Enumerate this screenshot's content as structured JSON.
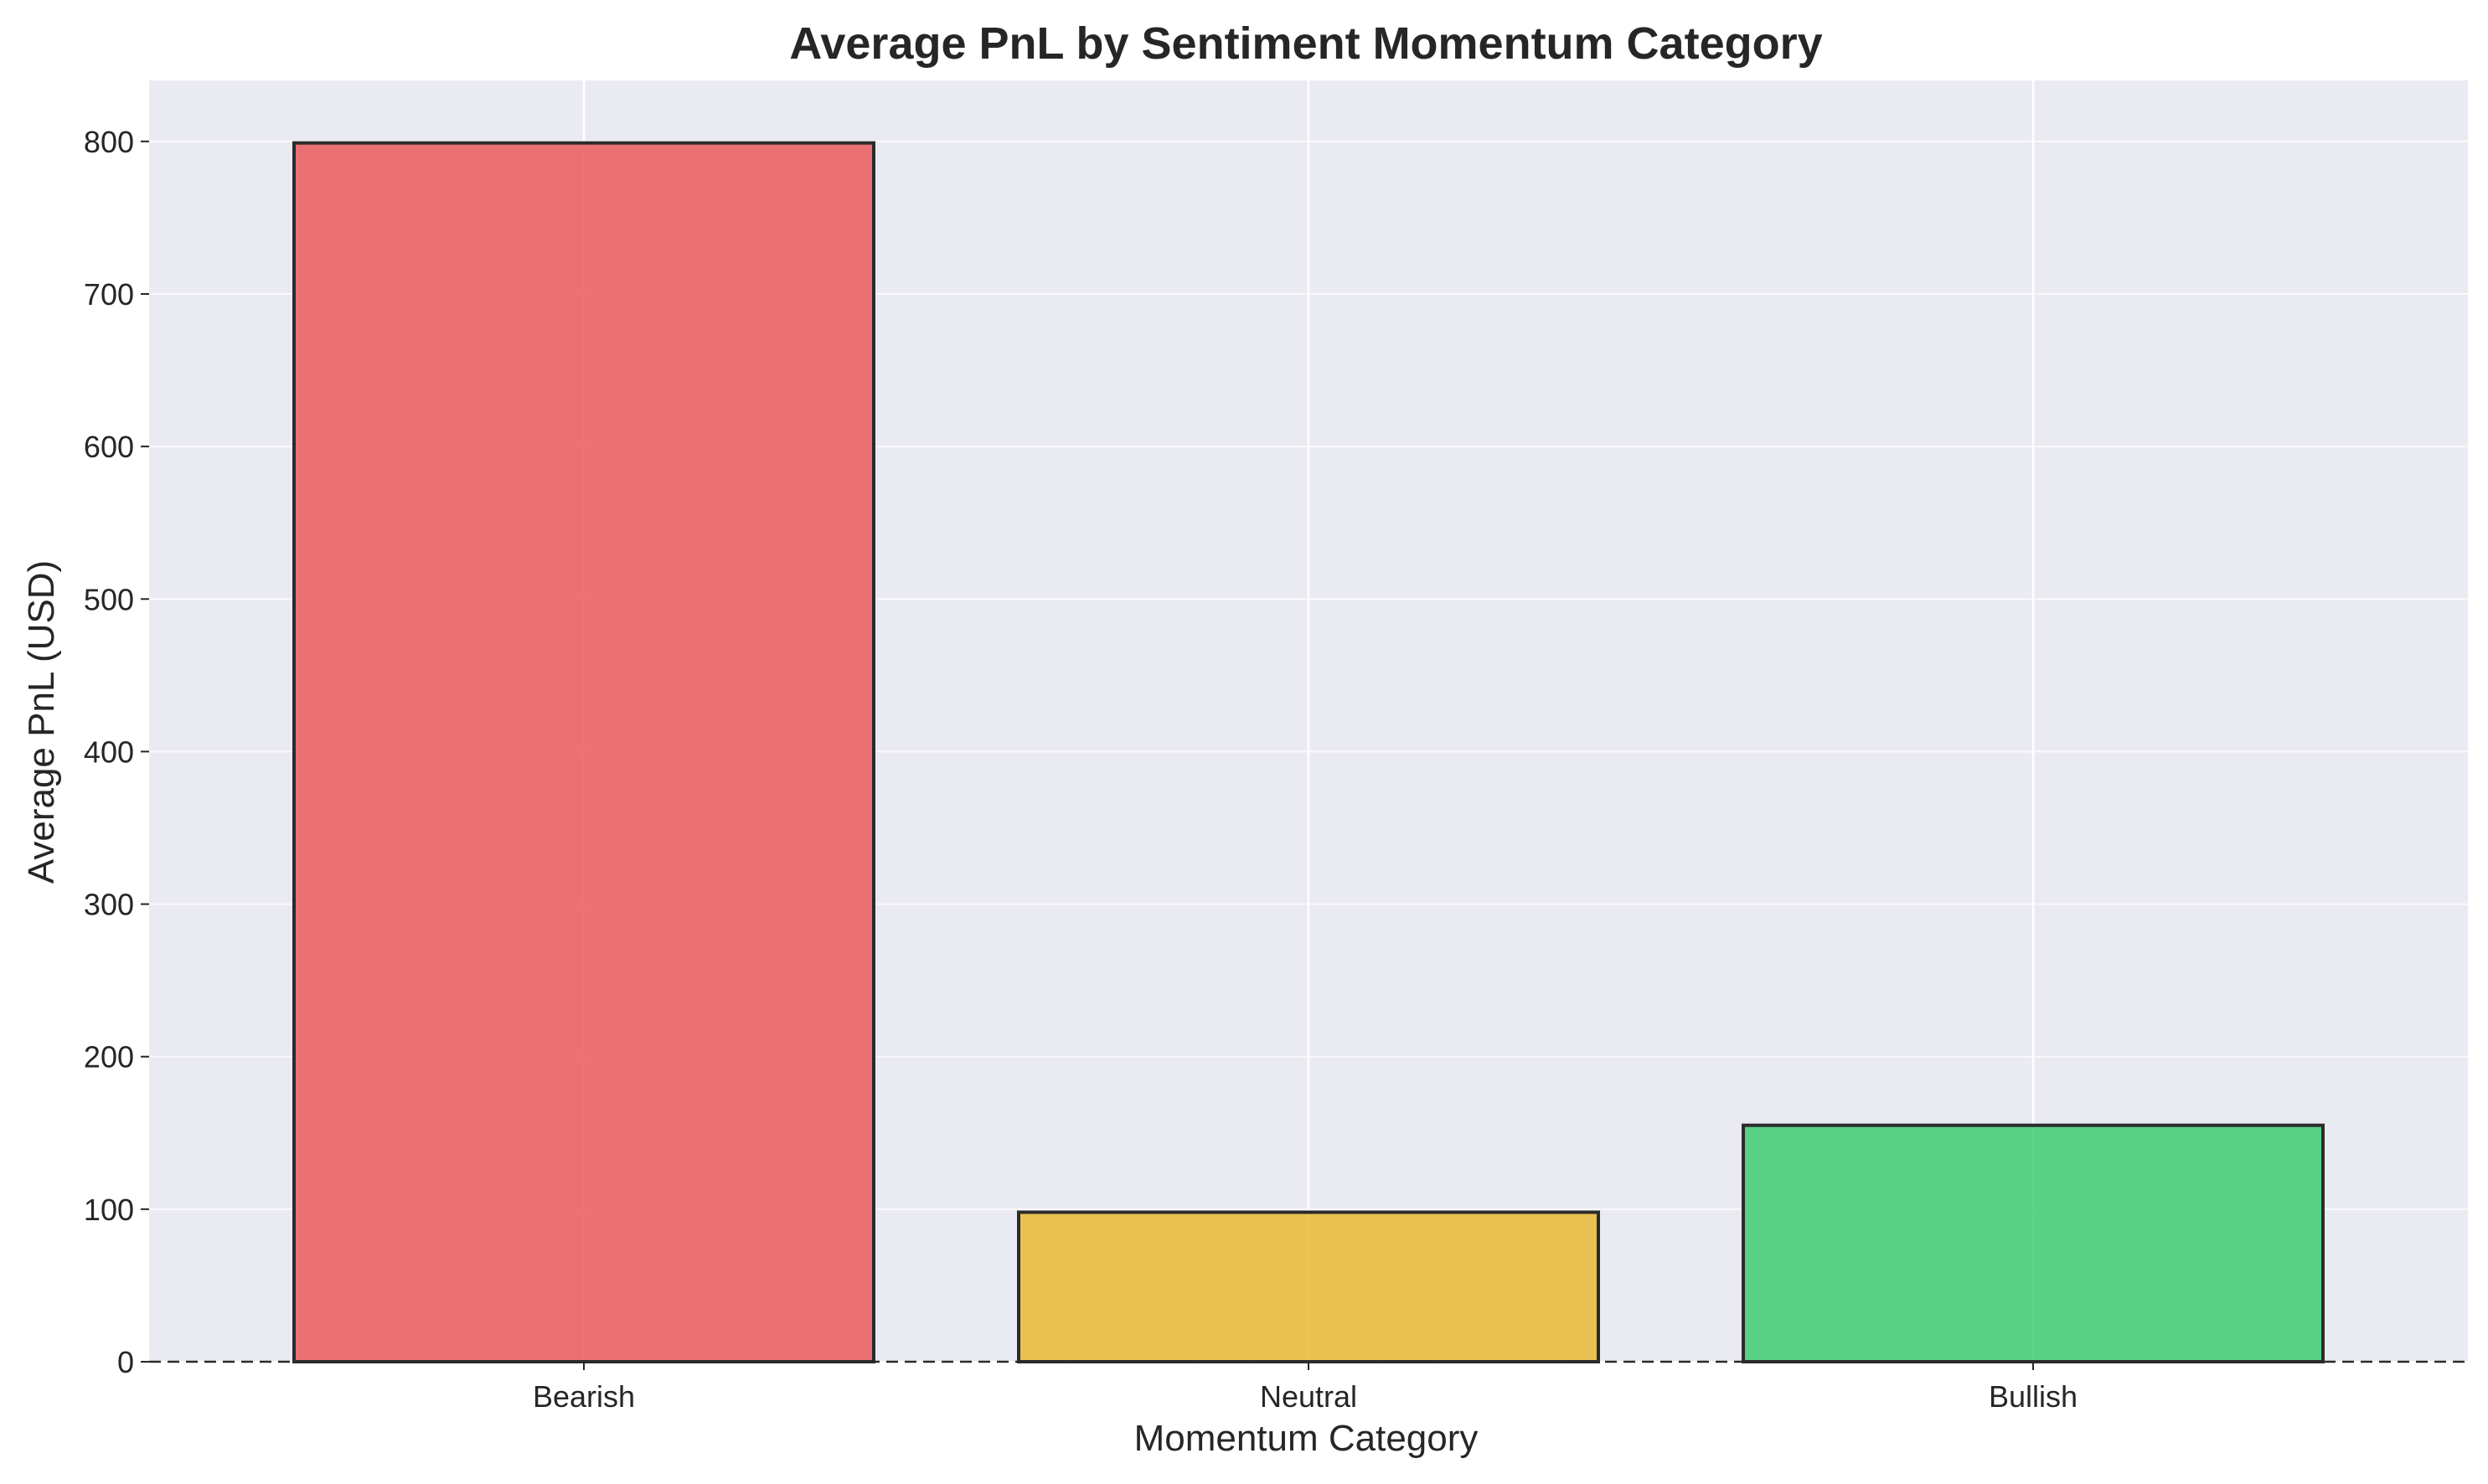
{
  "chart_data": {
    "type": "bar",
    "title": "Average PnL by Sentiment Momentum Category",
    "xlabel": "Momentum Category",
    "ylabel": "Average PnL (USD)",
    "categories": [
      "Bearish",
      "Neutral",
      "Bullish"
    ],
    "values": [
      799,
      98,
      155
    ],
    "colors": [
      "#eb5a5e",
      "#e8ba35",
      "#3ecc72"
    ],
    "edge_color": "#2b2b2b",
    "background_color": "#eaeaf2",
    "grid_color": "#ffffff",
    "ylim": [
      0,
      840
    ],
    "yticks": [
      0,
      100,
      200,
      300,
      400,
      500,
      600,
      700,
      800
    ],
    "ytick_labels": [
      "0",
      "100",
      "200",
      "300",
      "400",
      "500",
      "600",
      "700",
      "800"
    ],
    "grid": true,
    "zero_line": "dashed",
    "legend": "none"
  }
}
